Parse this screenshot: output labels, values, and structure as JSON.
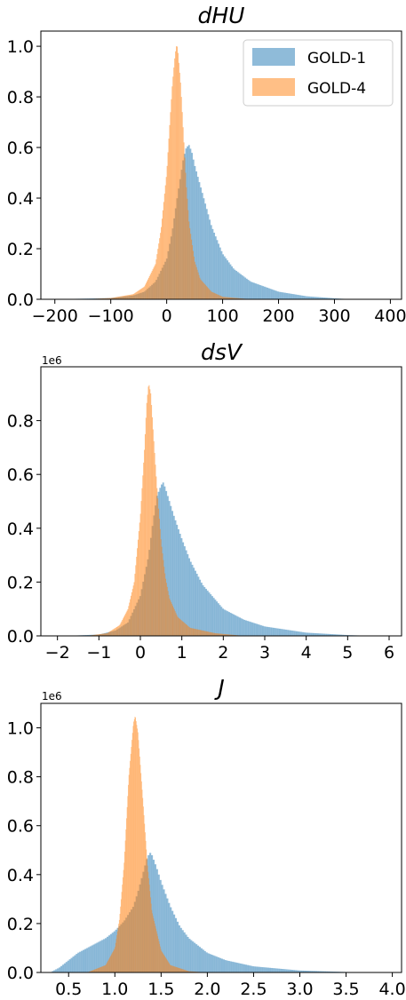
{
  "chart_data": [
    {
      "type": "histogram",
      "title": "dHU",
      "y_multiplier": "1e6",
      "xlim": [
        -225,
        420
      ],
      "ylim": [
        0,
        1.06
      ],
      "x_ticks": [
        -200,
        -100,
        0,
        100,
        200,
        300,
        400
      ],
      "x_tick_labels": [
        "−200",
        "−100",
        "0",
        "100",
        "200",
        "300",
        "400"
      ],
      "y_ticks": [
        0.0,
        0.2,
        0.4,
        0.6,
        0.8,
        1.0
      ],
      "y_tick_labels": [
        "0.0",
        "0.2",
        "0.4",
        "0.6",
        "0.8",
        "1.0"
      ],
      "legend": {
        "position": "top-right",
        "entries": [
          "GOLD-1",
          "GOLD-4"
        ]
      },
      "series": [
        {
          "name": "GOLD-1",
          "color": "#1f77b4",
          "alpha": 0.5,
          "x": [
            -200,
            -100,
            -60,
            -40,
            -20,
            0,
            10,
            20,
            30,
            35,
            40,
            45,
            50,
            60,
            70,
            80,
            100,
            120,
            150,
            200,
            250,
            300,
            330
          ],
          "values": [
            0.0,
            0.005,
            0.015,
            0.03,
            0.07,
            0.16,
            0.27,
            0.42,
            0.56,
            0.6,
            0.61,
            0.58,
            0.53,
            0.45,
            0.37,
            0.29,
            0.18,
            0.12,
            0.07,
            0.03,
            0.012,
            0.004,
            0.0
          ]
        },
        {
          "name": "GOLD-4",
          "color": "#ff7f0e",
          "alpha": 0.5,
          "x": [
            -150,
            -100,
            -60,
            -40,
            -20,
            -10,
            0,
            5,
            10,
            15,
            18,
            20,
            25,
            30,
            35,
            40,
            50,
            60,
            80,
            100,
            150
          ],
          "values": [
            0.0,
            0.005,
            0.02,
            0.05,
            0.14,
            0.28,
            0.5,
            0.68,
            0.85,
            0.97,
            1.01,
            0.98,
            0.85,
            0.65,
            0.45,
            0.3,
            0.15,
            0.08,
            0.03,
            0.01,
            0.0
          ]
        }
      ]
    },
    {
      "type": "histogram",
      "title": "dsV",
      "y_multiplier": "1e6",
      "xlim": [
        -2.4,
        6.3
      ],
      "ylim": [
        0,
        1.0
      ],
      "x_ticks": [
        -2,
        -1,
        0,
        1,
        2,
        3,
        4,
        5,
        6
      ],
      "x_tick_labels": [
        "−2",
        "−1",
        "0",
        "1",
        "2",
        "3",
        "4",
        "5",
        "6"
      ],
      "y_ticks": [
        0.0,
        0.2,
        0.4,
        0.6,
        0.8
      ],
      "y_tick_labels": [
        "0.0",
        "0.2",
        "0.4",
        "0.6",
        "0.8"
      ],
      "series": [
        {
          "name": "GOLD-1",
          "color": "#1f77b4",
          "alpha": 0.5,
          "x": [
            -1.8,
            -1.0,
            -0.6,
            -0.3,
            0.0,
            0.2,
            0.3,
            0.4,
            0.5,
            0.55,
            0.6,
            0.7,
            0.8,
            1.0,
            1.2,
            1.5,
            2.0,
            2.5,
            3.0,
            4.0,
            5.0,
            5.6
          ],
          "values": [
            0.0,
            0.005,
            0.02,
            0.05,
            0.15,
            0.3,
            0.42,
            0.52,
            0.56,
            0.57,
            0.55,
            0.5,
            0.45,
            0.36,
            0.28,
            0.19,
            0.1,
            0.06,
            0.035,
            0.012,
            0.003,
            0.0
          ]
        },
        {
          "name": "GOLD-4",
          "color": "#ff7f0e",
          "alpha": 0.5,
          "x": [
            -1.3,
            -0.8,
            -0.5,
            -0.3,
            -0.15,
            0.0,
            0.1,
            0.15,
            0.2,
            0.25,
            0.3,
            0.4,
            0.5,
            0.6,
            0.7,
            0.9,
            1.2,
            1.8,
            2.5
          ],
          "values": [
            0.0,
            0.01,
            0.04,
            0.1,
            0.2,
            0.45,
            0.7,
            0.86,
            0.94,
            0.9,
            0.78,
            0.55,
            0.35,
            0.22,
            0.14,
            0.07,
            0.03,
            0.01,
            0.0
          ]
        }
      ]
    },
    {
      "type": "histogram",
      "title": "J",
      "y_multiplier": "1e6",
      "xlim": [
        0.2,
        4.1
      ],
      "ylim": [
        0,
        1.1
      ],
      "x_ticks": [
        0.5,
        1.0,
        1.5,
        2.0,
        2.5,
        3.0,
        3.5,
        4.0
      ],
      "x_tick_labels": [
        "0.5",
        "1.0",
        "1.5",
        "2.0",
        "2.5",
        "3.0",
        "3.5",
        "4.0"
      ],
      "y_ticks": [
        0.0,
        0.2,
        0.4,
        0.6,
        0.8,
        1.0
      ],
      "y_tick_labels": [
        "0.0",
        "0.2",
        "0.4",
        "0.6",
        "0.8",
        "1.0"
      ],
      "series": [
        {
          "name": "GOLD-1",
          "color": "#1f77b4",
          "alpha": 0.5,
          "x": [
            0.3,
            0.4,
            0.5,
            0.6,
            0.7,
            0.8,
            0.9,
            1.0,
            1.1,
            1.2,
            1.25,
            1.3,
            1.35,
            1.38,
            1.4,
            1.45,
            1.5,
            1.6,
            1.7,
            1.8,
            2.0,
            2.2,
            2.5,
            3.0,
            3.5,
            4.0
          ],
          "values": [
            0.0,
            0.02,
            0.05,
            0.08,
            0.1,
            0.12,
            0.14,
            0.17,
            0.21,
            0.27,
            0.33,
            0.4,
            0.47,
            0.49,
            0.48,
            0.43,
            0.37,
            0.27,
            0.19,
            0.14,
            0.08,
            0.05,
            0.025,
            0.008,
            0.002,
            0.0
          ]
        },
        {
          "name": "GOLD-4",
          "color": "#ff7f0e",
          "alpha": 0.5,
          "x": [
            0.7,
            0.9,
            1.0,
            1.05,
            1.1,
            1.15,
            1.2,
            1.22,
            1.25,
            1.3,
            1.35,
            1.4,
            1.5,
            1.6,
            1.8,
            2.0
          ],
          "values": [
            0.0,
            0.03,
            0.1,
            0.22,
            0.45,
            0.8,
            1.02,
            1.05,
            0.98,
            0.72,
            0.45,
            0.25,
            0.09,
            0.03,
            0.005,
            0.0
          ]
        }
      ]
    }
  ]
}
